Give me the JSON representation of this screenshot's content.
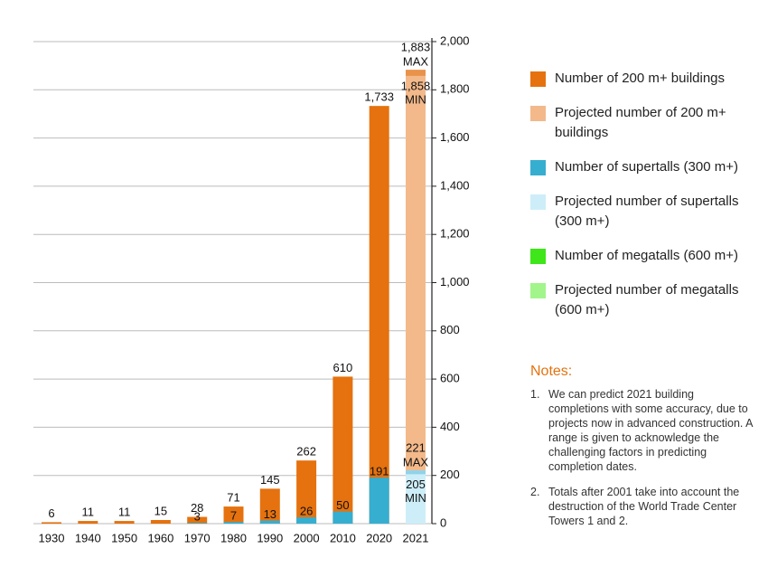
{
  "chart_data": {
    "type": "bar",
    "categories": [
      "1930",
      "1940",
      "1950",
      "1960",
      "1970",
      "1980",
      "1990",
      "2000",
      "2010",
      "2020",
      "2021"
    ],
    "series": [
      {
        "name": "Number of 200 m+ buildings",
        "color": "#e5720e",
        "values": [
          6,
          11,
          11,
          15,
          28,
          71,
          145,
          262,
          610,
          1733,
          null
        ],
        "value_labels": [
          "6",
          "11",
          "11",
          "15",
          "28",
          "71",
          "145",
          "262",
          "610",
          "1,733",
          null
        ]
      },
      {
        "name": "Projected number of 200 m+ buildings",
        "color": "#f3b98a",
        "range_color": "#e9924a",
        "values": [
          null,
          null,
          null,
          null,
          null,
          null,
          null,
          null,
          null,
          null,
          1883
        ],
        "value_labels": [
          null,
          null,
          null,
          null,
          null,
          null,
          null,
          null,
          null,
          null,
          "1,883"
        ],
        "min_values": [
          null,
          null,
          null,
          null,
          null,
          null,
          null,
          null,
          null,
          null,
          1858
        ],
        "min_value_labels": [
          null,
          null,
          null,
          null,
          null,
          null,
          null,
          null,
          null,
          null,
          "1,858"
        ]
      },
      {
        "name": "Number of supertalls (300 m+)",
        "color": "#36aed0",
        "values": [
          null,
          null,
          null,
          null,
          3,
          7,
          13,
          26,
          50,
          191,
          null
        ]
      },
      {
        "name": "Projected number of supertalls (300 m+)",
        "color": "#cdeef8",
        "range_color": "#8fd3ea",
        "values": [
          null,
          null,
          null,
          null,
          null,
          null,
          null,
          null,
          null,
          null,
          221
        ],
        "min_values": [
          null,
          null,
          null,
          null,
          null,
          null,
          null,
          null,
          null,
          null,
          205
        ]
      },
      {
        "name": "Number of megatalls (600 m+)",
        "color": "#3ee61a",
        "values": [
          null,
          null,
          null,
          null,
          null,
          null,
          null,
          null,
          null,
          null,
          null
        ]
      },
      {
        "name": "Projected number of megatalls (600 m+)",
        "color": "#a2f58a",
        "values": [
          null,
          null,
          null,
          null,
          null,
          null,
          null,
          null,
          null,
          null,
          null
        ]
      }
    ],
    "max_label": "MAX",
    "min_label": "MIN",
    "ylim": [
      0,
      2000
    ],
    "yticks": [
      0,
      200,
      400,
      600,
      800,
      {
        "value": 1000,
        "label": "1,000"
      },
      {
        "value": 1200,
        "label": "1,200"
      },
      {
        "value": 1400,
        "label": "1,400"
      },
      {
        "value": 1600,
        "label": "1,600"
      },
      {
        "value": 1800,
        "label": "1,800"
      },
      {
        "value": 2000,
        "label": "2,000"
      }
    ],
    "grid": true,
    "axis_side": "right"
  },
  "notes": {
    "title": "Notes:",
    "items": [
      {
        "number": "1.",
        "text": "We can predict 2021 building completions with some accuracy, due to projects now in advanced construction. A range is given to acknowledge the challenging factors in predicting completion dates."
      },
      {
        "number": "2.",
        "text": "Totals after 2001 take into account the destruction of the World Trade Center Towers 1 and 2."
      }
    ]
  }
}
